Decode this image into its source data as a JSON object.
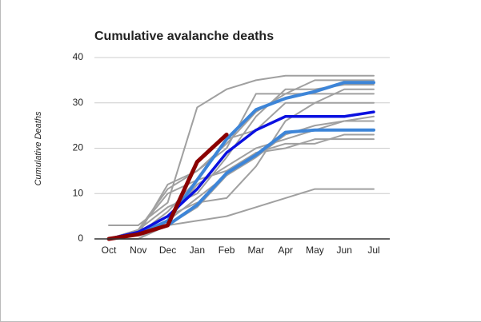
{
  "chart_data": {
    "type": "line",
    "title": "Cumulative avalanche deaths",
    "y_label": "Cumulative Deaths",
    "categories": [
      "Oct",
      "Nov",
      "Dec",
      "Jan",
      "Feb",
      "Mar",
      "Apr",
      "May",
      "Jun",
      "Jul"
    ],
    "ylim": [
      0,
      40
    ],
    "yticks": [
      0,
      10,
      20,
      30,
      40
    ],
    "grid": true,
    "series": [
      {
        "color": "#a0a0a0",
        "values": [
          3,
          3,
          8,
          29,
          33,
          35,
          36,
          36,
          36,
          36
        ]
      },
      {
        "color": "#a0a0a0",
        "values": [
          0,
          1,
          12,
          15,
          20,
          32,
          32,
          35,
          35,
          35
        ]
      },
      {
        "color": "#a0a0a0",
        "values": [
          0,
          2,
          7,
          10,
          18,
          27,
          33,
          33,
          34,
          34
        ]
      },
      {
        "color": "#a0a0a0",
        "values": [
          0,
          1,
          5,
          8,
          9,
          16,
          26,
          30,
          30,
          30
        ]
      },
      {
        "color": "#a0a0a0",
        "values": [
          0,
          0,
          3,
          4,
          5,
          7,
          9,
          11,
          11,
          11
        ]
      },
      {
        "color": "#a0a0a0",
        "values": [
          0,
          1,
          4,
          12,
          16,
          20,
          22,
          24,
          26,
          27
        ]
      },
      {
        "color": "#a0a0a0",
        "values": [
          0,
          1,
          6,
          13,
          15,
          19,
          21,
          21,
          23,
          23
        ]
      },
      {
        "color": "#a0a0a0",
        "values": [
          0,
          2,
          10,
          13,
          22,
          24,
          30,
          30,
          33,
          33
        ]
      },
      {
        "color": "#a0a0a0",
        "values": [
          0,
          1,
          3,
          7,
          14,
          19,
          20,
          22,
          22,
          22
        ]
      },
      {
        "color": "#a0a0a0",
        "values": [
          0,
          0,
          4,
          9,
          14,
          18,
          23,
          25,
          26,
          26
        ]
      },
      {
        "color": "#a0a0a0",
        "values": [
          0,
          2,
          11,
          15,
          21,
          28,
          32,
          32,
          32,
          32
        ]
      },
      {
        "color": "#3d85d8",
        "width": 4,
        "values": [
          0,
          1,
          4,
          13,
          22,
          28.5,
          31,
          32.5,
          34.5,
          34.5
        ]
      },
      {
        "color": "#3d85d8",
        "width": 4,
        "values": [
          0,
          1,
          3,
          7.5,
          14.5,
          18.5,
          23.5,
          24,
          24,
          24
        ]
      },
      {
        "color": "#0a10e0",
        "width": 3.5,
        "values": [
          0,
          1.5,
          5,
          11,
          19,
          24,
          27,
          27,
          27,
          28
        ]
      },
      {
        "color": "#8b0000",
        "width": 5,
        "values": [
          0,
          1,
          3,
          17,
          23,
          null,
          null,
          null,
          null,
          null
        ]
      }
    ]
  }
}
